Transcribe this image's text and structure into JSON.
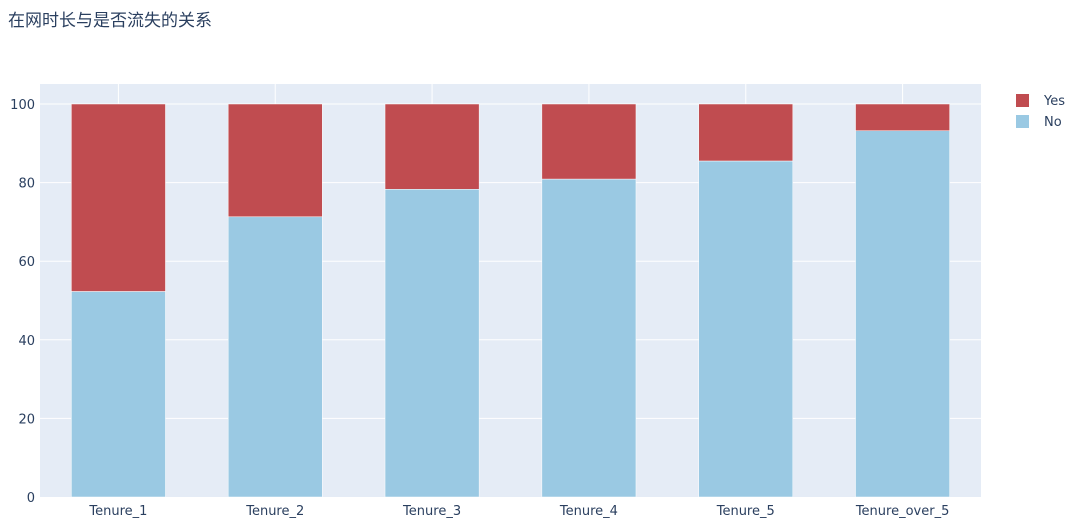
{
  "chart_data": {
    "type": "bar",
    "stacked": true,
    "title": "在网时长与是否流失的关系",
    "xlabel": "",
    "ylabel": "",
    "categories": [
      "Tenure_1",
      "Tenure_2",
      "Tenure_3",
      "Tenure_4",
      "Tenure_5",
      "Tenure_over_5"
    ],
    "series": [
      {
        "name": "No",
        "color": "#9ac9e3",
        "values": [
          52.3,
          71.3,
          78.3,
          80.9,
          85.5,
          93.2
        ]
      },
      {
        "name": "Yes",
        "color": "#c04c50",
        "values": [
          47.7,
          28.7,
          21.7,
          19.1,
          14.5,
          6.8
        ]
      }
    ],
    "ylim": [
      0,
      100
    ],
    "yticks": [
      0,
      20,
      40,
      60,
      80,
      100
    ],
    "grid": true,
    "legend": {
      "placement": "top-right",
      "order": [
        "Yes",
        "No"
      ]
    },
    "colors": {
      "plot_background": "#e5ecf6",
      "gridline": "#ffffff",
      "text": "#2a3f5f"
    }
  }
}
